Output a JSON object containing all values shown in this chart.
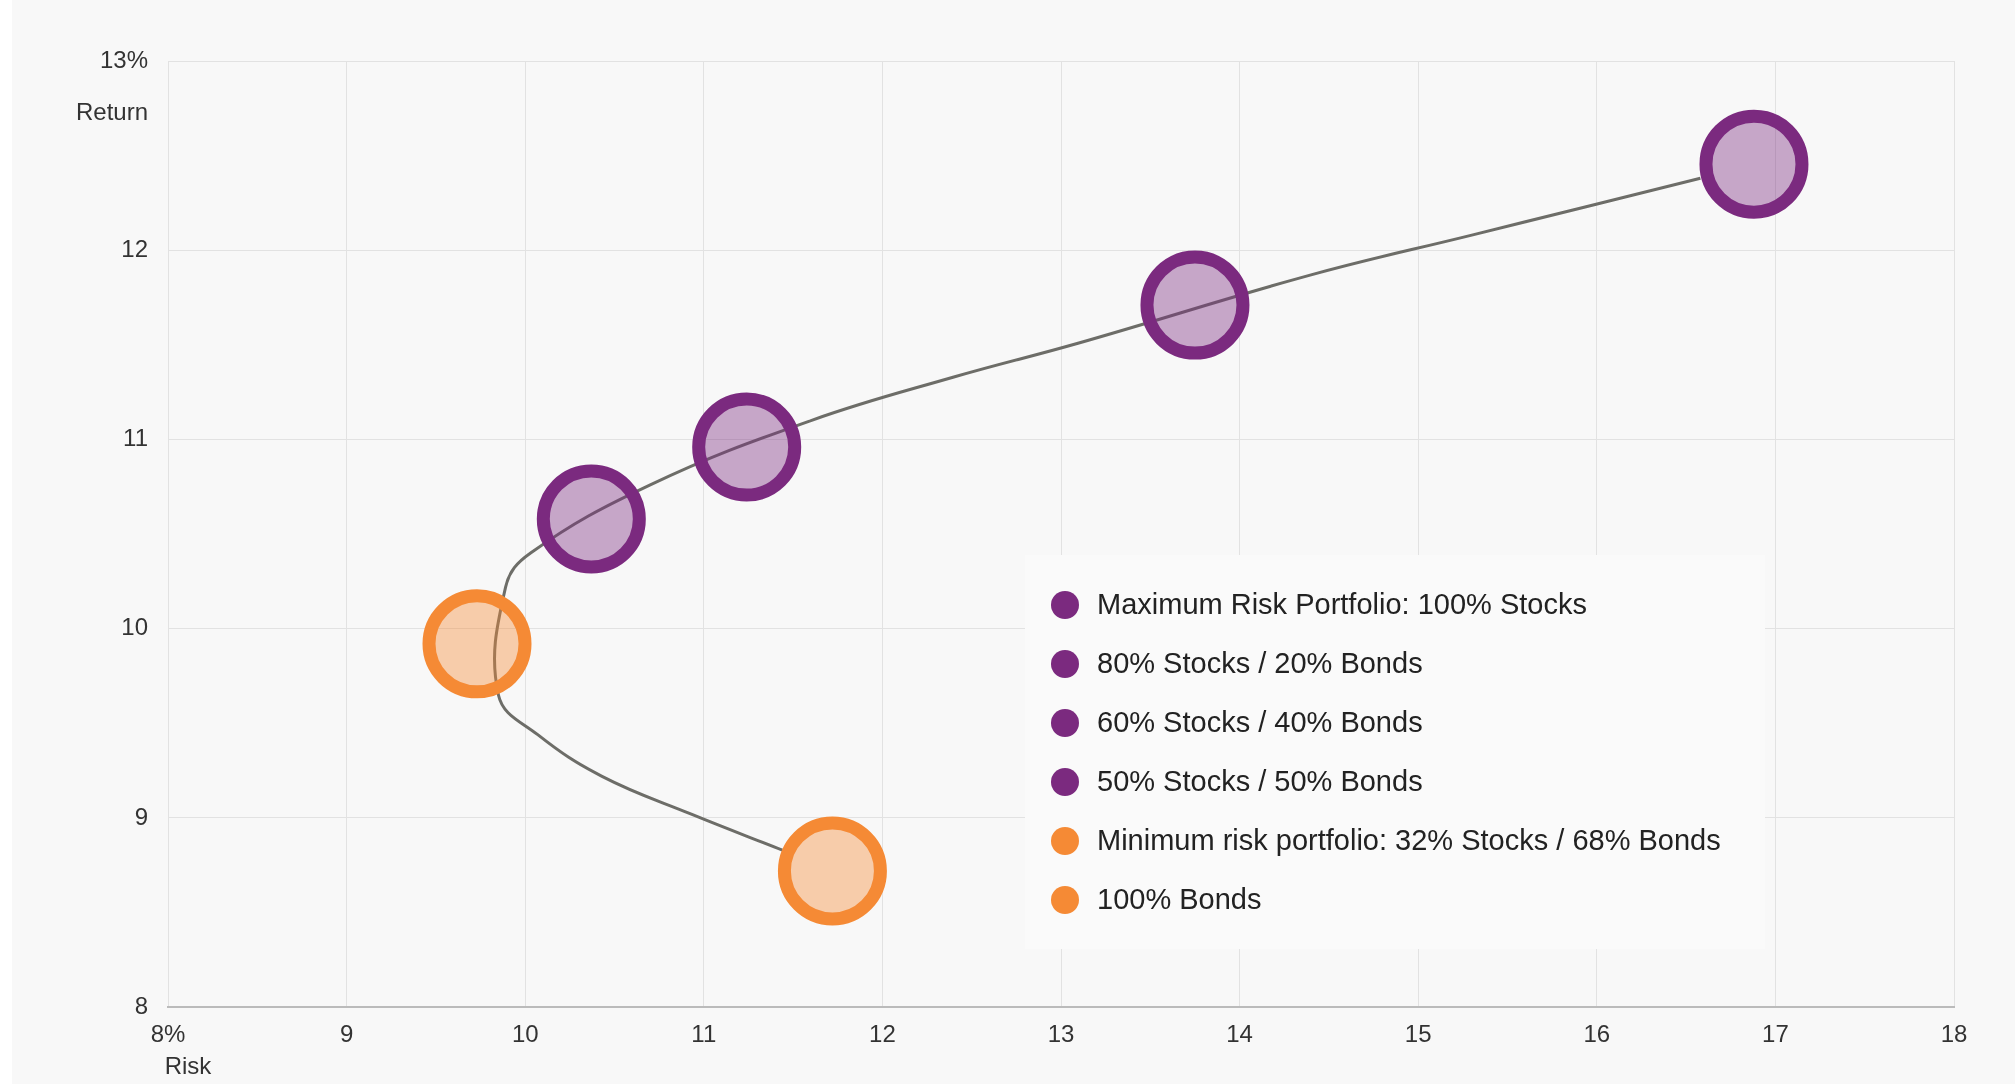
{
  "chart_data": {
    "type": "scatter",
    "xlabel": "Risk",
    "ylabel": "Return",
    "xlim": [
      8,
      18
    ],
    "xticks": [
      {
        "value": 8,
        "label": "8%"
      },
      9,
      10,
      11,
      12,
      13,
      14,
      15,
      16,
      17,
      18
    ],
    "ylim": [
      8,
      13
    ],
    "yticks": [
      8,
      9,
      10,
      11,
      12,
      {
        "value": 13,
        "label": "13%"
      }
    ],
    "grid": true,
    "legend": "right",
    "marker": "circle",
    "series": [
      {
        "type": "line",
        "marker": "none",
        "color": "#6d6d68",
        "x": [
          11.44,
          10.93,
          10.43,
          10.07,
          9.85,
          9.89,
          10.03,
          10.7,
          11.6,
          12.4,
          13.1,
          14.4,
          15.3,
          16.58
        ],
        "values": [
          8.83,
          9.02,
          9.22,
          9.44,
          9.65,
          10.22,
          10.4,
          10.76,
          11.1,
          11.33,
          11.51,
          11.87,
          12.08,
          12.38
        ]
      },
      {
        "name": "Maximum Risk Portfolio: 100% Stocks",
        "color": "#7b2a7f",
        "x": [
          16.88
        ],
        "values": [
          12.455
        ]
      },
      {
        "name": "80% Stocks / 20% Bonds",
        "color": "#7b2a7f",
        "x": [
          13.75
        ],
        "values": [
          11.71
        ]
      },
      {
        "name": "60% Stocks / 40% Bonds",
        "color": "#7b2a7f",
        "x": [
          11.24
        ],
        "values": [
          10.96
        ]
      },
      {
        "name": "50% Stocks / 50% Bonds",
        "color": "#7b2a7f",
        "x": [
          10.37
        ],
        "values": [
          10.58
        ]
      },
      {
        "name": "Minimum risk portfolio: 32% Stocks / 68% Bonds",
        "color": "#f58a35",
        "x": [
          9.73
        ],
        "values": [
          9.92
        ]
      },
      {
        "name": "100% Bonds",
        "color": "#f58a35",
        "x": [
          11.72
        ],
        "values": [
          8.72
        ]
      }
    ]
  }
}
